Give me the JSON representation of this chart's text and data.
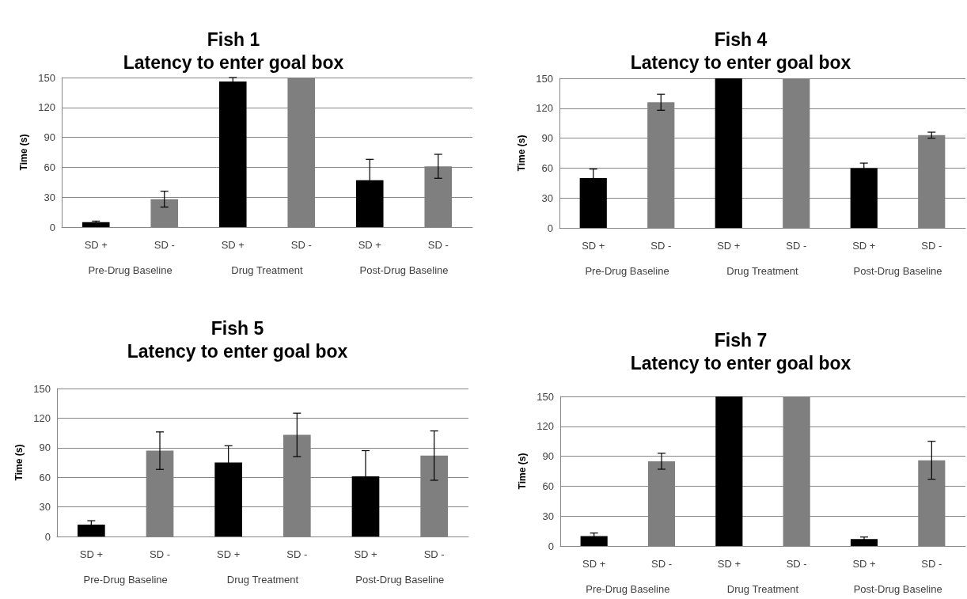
{
  "chart_data": [
    {
      "type": "bar",
      "title": "Fish 1",
      "subtitle": "Latency to enter goal box",
      "ylabel": "Time (s)",
      "categories": [
        "SD +",
        "SD -",
        "SD +",
        "SD -",
        "SD +",
        "SD -"
      ],
      "values": [
        5,
        28,
        146,
        150,
        47,
        61
      ],
      "errors": [
        1,
        8,
        4,
        null,
        21,
        12
      ],
      "colors": [
        "#000000",
        "#7f7f7f",
        "#000000",
        "#7f7f7f",
        "#000000",
        "#7f7f7f"
      ],
      "ylim": [
        0,
        150
      ],
      "yticks": [
        0,
        30,
        60,
        90,
        120,
        150
      ],
      "grid": "y",
      "annotations": [
        "Pre-Drug Baseline",
        "Drug Treatment",
        "Post-Drug Baseline"
      ]
    },
    {
      "type": "bar",
      "title": "Fish 4",
      "subtitle": "Latency to enter goal box",
      "ylabel": "Time (s)",
      "categories": [
        "SD +",
        "SD -",
        "SD +",
        "SD -",
        "SD +",
        "SD -"
      ],
      "values": [
        50,
        126,
        150,
        150,
        60,
        93
      ],
      "errors": [
        9,
        8,
        null,
        null,
        5,
        3
      ],
      "colors": [
        "#000000",
        "#7f7f7f",
        "#000000",
        "#7f7f7f",
        "#000000",
        "#7f7f7f"
      ],
      "ylim": [
        0,
        150
      ],
      "yticks": [
        0,
        30,
        60,
        90,
        120,
        150
      ],
      "grid": "y",
      "annotations": [
        "Pre-Drug Baseline",
        "Drug Treatment",
        "Post-Drug Baseline"
      ]
    },
    {
      "type": "bar",
      "title": "Fish 5",
      "subtitle": "Latency to enter goal box",
      "ylabel": "Time (s)",
      "categories": [
        "SD +",
        "SD -",
        "SD +",
        "SD -",
        "SD +",
        "SD -"
      ],
      "values": [
        12,
        87,
        75,
        103,
        61,
        82
      ],
      "errors": [
        4,
        19,
        17,
        22,
        26,
        25
      ],
      "colors": [
        "#000000",
        "#7f7f7f",
        "#000000",
        "#7f7f7f",
        "#000000",
        "#7f7f7f"
      ],
      "ylim": [
        0,
        150
      ],
      "yticks": [
        0,
        30,
        60,
        90,
        120,
        150
      ],
      "grid": "y",
      "annotations": [
        "Pre-Drug Baseline",
        "Drug Treatment",
        "Post-Drug Baseline"
      ]
    },
    {
      "type": "bar",
      "title": "Fish 7",
      "subtitle": "Latency to enter goal box",
      "ylabel": "Time (s)",
      "categories": [
        "SD +",
        "SD -",
        "SD +",
        "SD -",
        "SD +",
        "SD -"
      ],
      "values": [
        10,
        85,
        150,
        150,
        7,
        86
      ],
      "errors": [
        3,
        8,
        null,
        null,
        2,
        19
      ],
      "colors": [
        "#000000",
        "#7f7f7f",
        "#000000",
        "#7f7f7f",
        "#000000",
        "#7f7f7f"
      ],
      "ylim": [
        0,
        150
      ],
      "yticks": [
        0,
        30,
        60,
        90,
        120,
        150
      ],
      "grid": "y",
      "annotations": [
        "Pre-Drug Baseline",
        "Drug Treatment",
        "Post-Drug Baseline"
      ]
    }
  ]
}
